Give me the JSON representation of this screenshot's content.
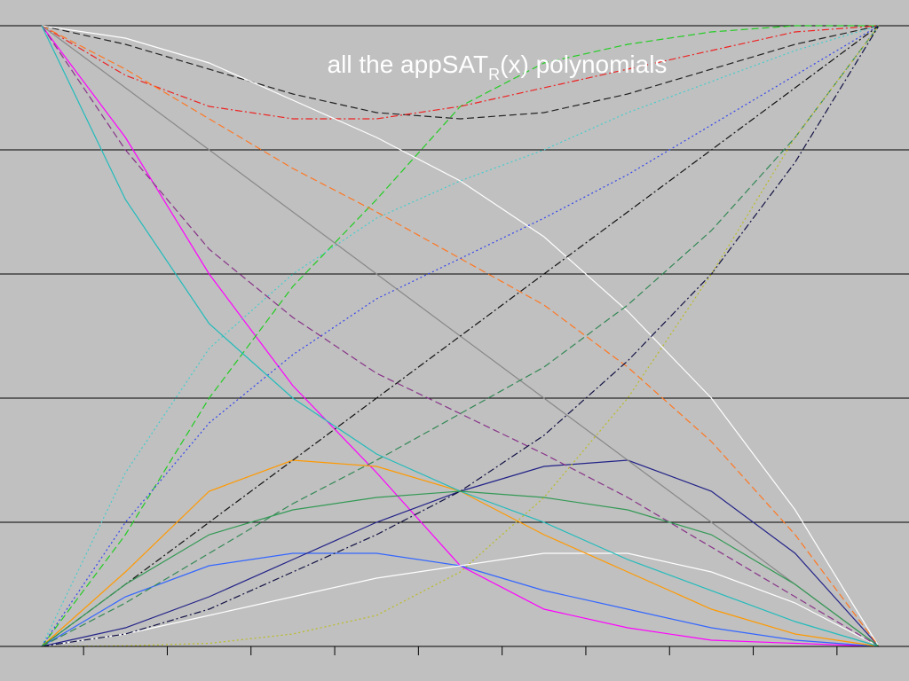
{
  "chart_data": {
    "type": "line",
    "title": {
      "main": "all the appSAT",
      "subscript": "R",
      "rest": "(x) polynomials"
    },
    "x": [
      0,
      0.1,
      0.2,
      0.3,
      0.4,
      0.5,
      0.6,
      0.7,
      0.8,
      0.9,
      1
    ],
    "xlim": [
      0,
      1
    ],
    "xticks": [
      0.05,
      0.15,
      0.25,
      0.35,
      0.45,
      0.55,
      0.65,
      0.75,
      0.85,
      0.95
    ],
    "ylim": [
      0,
      1
    ],
    "yticks": [
      0,
      0.2,
      0.4,
      0.6,
      0.8,
      1
    ],
    "grid": true,
    "series": [
      {
        "color": "#ff00ff",
        "style": "solid",
        "values": [
          1,
          0.82,
          0.6,
          0.42,
          0.28,
          0.13,
          0.06,
          0.03,
          0.01,
          0.005,
          0
        ]
      },
      {
        "color": "#22cc22",
        "style": "dashed",
        "values": [
          0,
          0.18,
          0.4,
          0.58,
          0.72,
          0.87,
          0.94,
          0.97,
          0.99,
          1,
          1
        ]
      },
      {
        "color": "#222222",
        "style": "dashed",
        "values": [
          1,
          0.97,
          0.93,
          0.89,
          0.86,
          0.85,
          0.86,
          0.89,
          0.93,
          0.97,
          1
        ]
      },
      {
        "color": "#ee2222",
        "style": "dashdot",
        "values": [
          1,
          0.92,
          0.87,
          0.85,
          0.85,
          0.87,
          0.9,
          0.93,
          0.96,
          0.99,
          1
        ]
      },
      {
        "color": "#3366ff",
        "style": "solid",
        "values": [
          0,
          0.08,
          0.13,
          0.15,
          0.15,
          0.13,
          0.09,
          0.06,
          0.03,
          0.01,
          0
        ]
      },
      {
        "color": "#ffffff",
        "style": "solid",
        "values": [
          0,
          0.02,
          0.05,
          0.08,
          0.11,
          0.13,
          0.15,
          0.15,
          0.12,
          0.07,
          0
        ]
      },
      {
        "color": "#ff9900",
        "style": "solid",
        "values": [
          0,
          0.12,
          0.25,
          0.3,
          0.29,
          0.25,
          0.18,
          0.12,
          0.06,
          0.02,
          0
        ]
      },
      {
        "color": "#222288",
        "style": "solid",
        "values": [
          0,
          0.03,
          0.08,
          0.14,
          0.2,
          0.25,
          0.29,
          0.3,
          0.25,
          0.15,
          0
        ]
      },
      {
        "color": "#ffffff",
        "style": "solid",
        "values": [
          1,
          0.98,
          0.94,
          0.88,
          0.82,
          0.75,
          0.66,
          0.54,
          0.4,
          0.22,
          0
        ]
      },
      {
        "color": "#44cccc",
        "style": "dotted",
        "values": [
          0,
          0.28,
          0.48,
          0.6,
          0.69,
          0.75,
          0.8,
          0.86,
          0.91,
          0.96,
          1
        ]
      },
      {
        "color": "#ff7722",
        "style": "dashed",
        "values": [
          1,
          0.93,
          0.85,
          0.77,
          0.7,
          0.625,
          0.55,
          0.45,
          0.33,
          0.18,
          0
        ]
      },
      {
        "color": "#3344ee",
        "style": "dotted",
        "values": [
          0,
          0.2,
          0.36,
          0.47,
          0.56,
          0.625,
          0.69,
          0.76,
          0.84,
          0.92,
          1
        ]
      },
      {
        "color": "#888888",
        "style": "solid",
        "values": [
          1,
          0.9,
          0.8,
          0.7,
          0.6,
          0.5,
          0.4,
          0.3,
          0.2,
          0.1,
          0
        ]
      },
      {
        "color": "#111111",
        "style": "dashdot",
        "values": [
          0,
          0.1,
          0.2,
          0.3,
          0.4,
          0.5,
          0.6,
          0.7,
          0.8,
          0.9,
          1
        ]
      },
      {
        "color": "#883388",
        "style": "dashed",
        "values": [
          1,
          0.8,
          0.64,
          0.53,
          0.44,
          0.375,
          0.31,
          0.24,
          0.16,
          0.08,
          0
        ]
      },
      {
        "color": "#338855",
        "style": "dashed",
        "values": [
          0,
          0.07,
          0.15,
          0.23,
          0.3,
          0.375,
          0.45,
          0.55,
          0.67,
          0.82,
          1
        ]
      },
      {
        "color": "#22bbbb",
        "style": "solid",
        "values": [
          1,
          0.72,
          0.52,
          0.4,
          0.31,
          0.25,
          0.2,
          0.14,
          0.09,
          0.04,
          0
        ]
      },
      {
        "color": "#111144",
        "style": "dashdot",
        "values": [
          0,
          0.02,
          0.06,
          0.12,
          0.18,
          0.25,
          0.34,
          0.46,
          0.6,
          0.78,
          1
        ]
      },
      {
        "color": "#339955",
        "style": "solid",
        "values": [
          0,
          0.1,
          0.18,
          0.22,
          0.24,
          0.25,
          0.24,
          0.22,
          0.18,
          0.1,
          0
        ]
      },
      {
        "color": "#bbbb22",
        "style": "dotted",
        "values": [
          0,
          0.001,
          0.005,
          0.02,
          0.05,
          0.12,
          0.24,
          0.4,
          0.6,
          0.82,
          1
        ]
      }
    ]
  }
}
